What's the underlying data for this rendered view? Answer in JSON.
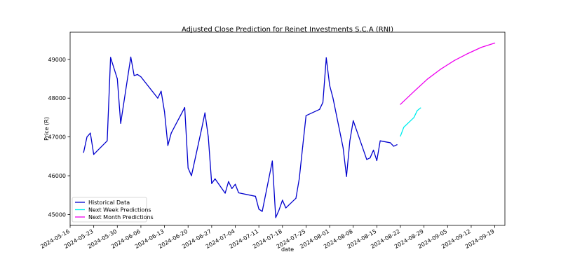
{
  "chart_data": {
    "type": "line",
    "title": "Adjusted Close Prediction for Reinet Investments S.C.A (RNI)",
    "xlabel": "date",
    "ylabel": "Price (R)",
    "x_range": [
      "2024-05-16",
      "2024-09-22"
    ],
    "ylim": [
      44720,
      49700
    ],
    "grid": false,
    "legend_position": "lower-left",
    "x_ticks": [
      "2024-05-16",
      "2024-05-23",
      "2024-05-30",
      "2024-06-06",
      "2024-06-13",
      "2024-06-20",
      "2024-06-27",
      "2024-07-04",
      "2024-07-11",
      "2024-07-18",
      "2024-07-25",
      "2024-08-01",
      "2024-08-08",
      "2024-08-15",
      "2024-08-22",
      "2024-08-29",
      "2024-09-05",
      "2024-09-12",
      "2024-09-19"
    ],
    "y_ticks": [
      45000,
      46000,
      47000,
      48000,
      49000
    ],
    "series": [
      {
        "name": "Historical Data",
        "color": "#0000cd",
        "x": [
          "2024-05-20",
          "2024-05-21",
          "2024-05-22",
          "2024-05-23",
          "2024-05-27",
          "2024-05-28",
          "2024-05-30",
          "2024-05-31",
          "2024-06-03",
          "2024-06-04",
          "2024-06-05",
          "2024-06-06",
          "2024-06-11",
          "2024-06-12",
          "2024-06-13",
          "2024-06-14",
          "2024-06-15",
          "2024-06-19",
          "2024-06-20",
          "2024-06-21",
          "2024-06-24",
          "2024-06-25",
          "2024-06-26",
          "2024-06-27",
          "2024-06-28",
          "2024-07-01",
          "2024-07-02",
          "2024-07-03",
          "2024-07-04",
          "2024-07-05",
          "2024-07-10",
          "2024-07-11",
          "2024-07-12",
          "2024-07-15",
          "2024-07-16",
          "2024-07-17",
          "2024-07-18",
          "2024-07-19",
          "2024-07-22",
          "2024-07-23",
          "2024-07-24",
          "2024-07-25",
          "2024-07-29",
          "2024-07-30",
          "2024-07-31",
          "2024-08-01",
          "2024-08-02",
          "2024-08-05",
          "2024-08-06",
          "2024-08-07",
          "2024-08-08",
          "2024-08-12",
          "2024-08-13",
          "2024-08-14",
          "2024-08-15",
          "2024-08-16",
          "2024-08-19",
          "2024-08-20",
          "2024-08-21"
        ],
        "y": [
          46600,
          47000,
          47100,
          46550,
          46900,
          49050,
          48500,
          47350,
          49060,
          48580,
          48610,
          48550,
          48000,
          48180,
          47650,
          46780,
          47100,
          47760,
          46200,
          46000,
          47200,
          47620,
          47000,
          45800,
          45920,
          45550,
          45850,
          45670,
          45780,
          45560,
          45470,
          45140,
          45080,
          46380,
          44920,
          45120,
          45370,
          45170,
          45420,
          45930,
          46750,
          47550,
          47710,
          47890,
          49040,
          48330,
          48000,
          46720,
          45980,
          46900,
          47420,
          46420,
          46460,
          46660,
          46390,
          46900,
          46850,
          46760,
          46800
        ]
      },
      {
        "name": "Next Week Predictions",
        "color": "#00eeee",
        "x": [
          "2024-08-22",
          "2024-08-23",
          "2024-08-26",
          "2024-08-27",
          "2024-08-28"
        ],
        "y": [
          47020,
          47250,
          47500,
          47680,
          47750
        ]
      },
      {
        "name": "Next Month Predictions",
        "color": "#ee00ee",
        "x": [
          "2024-08-22",
          "2024-08-26",
          "2024-08-30",
          "2024-09-03",
          "2024-09-07",
          "2024-09-11",
          "2024-09-15",
          "2024-09-19"
        ],
        "y": [
          47840,
          48170,
          48490,
          48750,
          48970,
          49150,
          49310,
          49420
        ]
      }
    ]
  }
}
